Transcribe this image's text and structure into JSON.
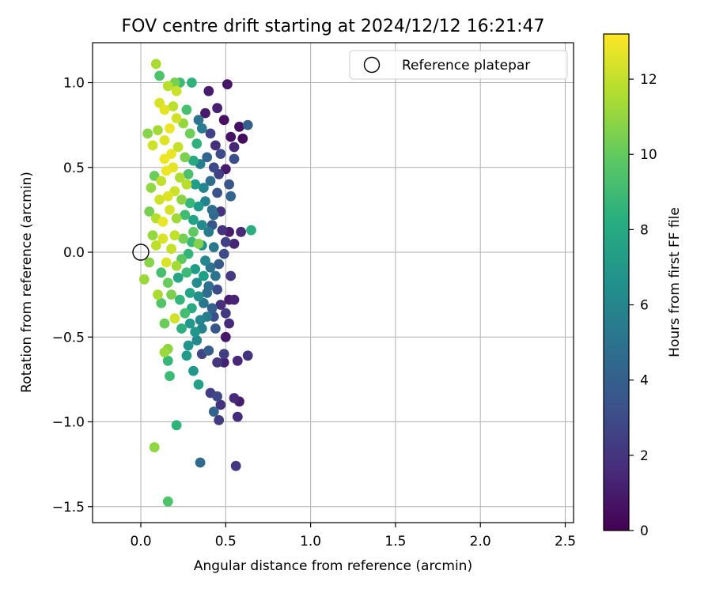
{
  "chart_data": {
    "type": "scatter",
    "title": "FOV centre drift starting at 2024/12/12 16:21:47",
    "xlabel": "Angular distance from reference (arcmin)",
    "ylabel": "Rotation from reference (arcmin)",
    "xlim": [
      -0.28,
      2.55
    ],
    "ylim": [
      -1.6,
      1.25
    ],
    "xticks": [
      0.0,
      0.5,
      1.0,
      1.5,
      2.0,
      2.5
    ],
    "xtick_labels": [
      "0.0",
      "0.5",
      "1.0",
      "1.5",
      "2.0",
      "2.5"
    ],
    "yticks": [
      -1.5,
      -1.0,
      -0.5,
      0.0,
      0.5,
      1.0
    ],
    "ytick_labels": [
      "−1.5",
      "−1.0",
      "−0.5",
      "0.0",
      "0.5",
      "1.0"
    ],
    "grid": true,
    "legend": {
      "position": "top-right",
      "entries": [
        "Reference platepar"
      ]
    },
    "reference_point": {
      "x": 0.0,
      "y": 0.0
    },
    "colorbar": {
      "label": "Hours from first FF file",
      "range": [
        0,
        13.2
      ],
      "ticks": [
        0,
        2,
        4,
        6,
        8,
        10,
        12
      ],
      "tick_labels": [
        "0",
        "2",
        "4",
        "6",
        "8",
        "10",
        "12"
      ],
      "colormap": "viridis"
    },
    "points": [
      {
        "x": 0.09,
        "y": 1.11,
        "h": 11.5
      },
      {
        "x": 0.11,
        "y": 1.04,
        "h": 9.5
      },
      {
        "x": 0.16,
        "y": 0.98,
        "h": 11.8
      },
      {
        "x": 0.2,
        "y": 1.0,
        "h": 10.5
      },
      {
        "x": 0.23,
        "y": 1.0,
        "h": 9.0
      },
      {
        "x": 0.3,
        "y": 1.0,
        "h": 8.5
      },
      {
        "x": 0.21,
        "y": 0.95,
        "h": 12.2
      },
      {
        "x": 0.4,
        "y": 0.95,
        "h": 1.0
      },
      {
        "x": 0.45,
        "y": 0.85,
        "h": 1.2
      },
      {
        "x": 0.51,
        "y": 0.99,
        "h": 0.8
      },
      {
        "x": 0.49,
        "y": 0.78,
        "h": 0.6
      },
      {
        "x": 0.58,
        "y": 0.74,
        "h": 0.5
      },
      {
        "x": 0.63,
        "y": 0.75,
        "h": 4.0
      },
      {
        "x": 0.53,
        "y": 0.68,
        "h": 0.7
      },
      {
        "x": 0.6,
        "y": 0.67,
        "h": 0.4
      },
      {
        "x": 0.55,
        "y": 0.62,
        "h": 1.5
      },
      {
        "x": 0.55,
        "y": 0.55,
        "h": 3.2
      },
      {
        "x": 0.5,
        "y": 0.49,
        "h": 0.9
      },
      {
        "x": 0.52,
        "y": 0.4,
        "h": 3.5
      },
      {
        "x": 0.53,
        "y": 0.33,
        "h": 4.2
      },
      {
        "x": 0.42,
        "y": 0.25,
        "h": 4.8
      },
      {
        "x": 0.47,
        "y": 0.24,
        "h": 2.0
      },
      {
        "x": 0.52,
        "y": 0.12,
        "h": 1.0
      },
      {
        "x": 0.59,
        "y": 0.12,
        "h": 1.5
      },
      {
        "x": 0.65,
        "y": 0.13,
        "h": 8.2
      },
      {
        "x": 0.5,
        "y": 0.06,
        "h": 2.5
      },
      {
        "x": 0.55,
        "y": 0.05,
        "h": 1.4
      },
      {
        "x": 0.49,
        "y": -0.01,
        "h": 3.0
      },
      {
        "x": 0.53,
        "y": -0.14,
        "h": 2.2
      },
      {
        "x": 0.52,
        "y": -0.28,
        "h": 1.0
      },
      {
        "x": 0.55,
        "y": -0.28,
        "h": 1.3
      },
      {
        "x": 0.47,
        "y": -0.31,
        "h": 1.8
      },
      {
        "x": 0.5,
        "y": -0.36,
        "h": 2.2
      },
      {
        "x": 0.52,
        "y": -0.42,
        "h": 1.6
      },
      {
        "x": 0.5,
        "y": -0.5,
        "h": 0.9
      },
      {
        "x": 0.44,
        "y": -0.45,
        "h": 3.5
      },
      {
        "x": 0.49,
        "y": -0.6,
        "h": 2.4
      },
      {
        "x": 0.45,
        "y": -0.65,
        "h": 2.1
      },
      {
        "x": 0.49,
        "y": -0.65,
        "h": 1.2
      },
      {
        "x": 0.57,
        "y": -0.64,
        "h": 1.5
      },
      {
        "x": 0.63,
        "y": -0.61,
        "h": 2.0
      },
      {
        "x": 0.41,
        "y": -0.83,
        "h": 2.4
      },
      {
        "x": 0.45,
        "y": -0.85,
        "h": 2.8
      },
      {
        "x": 0.47,
        "y": -0.9,
        "h": 1.9
      },
      {
        "x": 0.55,
        "y": -0.86,
        "h": 1.6
      },
      {
        "x": 0.58,
        "y": -0.88,
        "h": 1.1
      },
      {
        "x": 0.43,
        "y": -0.94,
        "h": 4.2
      },
      {
        "x": 0.46,
        "y": -0.99,
        "h": 2.3
      },
      {
        "x": 0.57,
        "y": -0.97,
        "h": 1.7
      },
      {
        "x": 0.35,
        "y": -1.24,
        "h": 4.5
      },
      {
        "x": 0.56,
        "y": -1.26,
        "h": 2.2
      },
      {
        "x": 0.34,
        "y": -0.78,
        "h": 7.5
      },
      {
        "x": 0.31,
        "y": -0.7,
        "h": 7.0
      },
      {
        "x": 0.21,
        "y": -1.02,
        "h": 8.5
      },
      {
        "x": 0.08,
        "y": -1.15,
        "h": 11.0
      },
      {
        "x": 0.16,
        "y": -1.47,
        "h": 9.5
      },
      {
        "x": 0.17,
        "y": -0.73,
        "h": 9.0
      },
      {
        "x": 0.14,
        "y": -0.59,
        "h": 11.2
      },
      {
        "x": 0.16,
        "y": -0.57,
        "h": 10.9
      },
      {
        "x": 0.16,
        "y": -0.64,
        "h": 8.8
      },
      {
        "x": 0.27,
        "y": -0.61,
        "h": 7.2
      },
      {
        "x": 0.28,
        "y": -0.55,
        "h": 6.8
      },
      {
        "x": 0.33,
        "y": -0.52,
        "h": 6.2
      },
      {
        "x": 0.36,
        "y": -0.45,
        "h": 5.8
      },
      {
        "x": 0.2,
        "y": -0.39,
        "h": 12.3
      },
      {
        "x": 0.14,
        "y": -0.42,
        "h": 10.2
      },
      {
        "x": 0.26,
        "y": -0.36,
        "h": 9.2
      },
      {
        "x": 0.3,
        "y": -0.33,
        "h": 8.0
      },
      {
        "x": 0.12,
        "y": -0.3,
        "h": 9.6
      },
      {
        "x": 0.1,
        "y": -0.25,
        "h": 11.5
      },
      {
        "x": 0.02,
        "y": -0.16,
        "h": 11.2
      },
      {
        "x": 0.16,
        "y": -0.18,
        "h": 10.1
      },
      {
        "x": 0.22,
        "y": -0.15,
        "h": 7.8
      },
      {
        "x": 0.33,
        "y": -0.18,
        "h": 6.4
      },
      {
        "x": 0.4,
        "y": -0.2,
        "h": 4.8
      },
      {
        "x": 0.45,
        "y": -0.22,
        "h": 3.0
      },
      {
        "x": 0.37,
        "y": -0.3,
        "h": 5.2
      },
      {
        "x": 0.42,
        "y": -0.33,
        "h": 4.1
      },
      {
        "x": 0.05,
        "y": -0.06,
        "h": 10.8
      },
      {
        "x": 0.09,
        "y": 0.04,
        "h": 11.9
      },
      {
        "x": 0.13,
        "y": 0.08,
        "h": 12.5
      },
      {
        "x": 0.18,
        "y": 0.02,
        "h": 12.1
      },
      {
        "x": 0.24,
        "y": -0.04,
        "h": 9.8
      },
      {
        "x": 0.28,
        "y": -0.01,
        "h": 8.6
      },
      {
        "x": 0.34,
        "y": 0.05,
        "h": 10.7
      },
      {
        "x": 0.38,
        "y": -0.05,
        "h": 6.1
      },
      {
        "x": 0.43,
        "y": 0.03,
        "h": 5.3
      },
      {
        "x": 0.05,
        "y": 0.24,
        "h": 10.5
      },
      {
        "x": 0.09,
        "y": 0.2,
        "h": 11.7
      },
      {
        "x": 0.13,
        "y": 0.18,
        "h": 12.8
      },
      {
        "x": 0.17,
        "y": 0.25,
        "h": 12.4
      },
      {
        "x": 0.21,
        "y": 0.2,
        "h": 11.3
      },
      {
        "x": 0.26,
        "y": 0.22,
        "h": 9.1
      },
      {
        "x": 0.31,
        "y": 0.19,
        "h": 7.6
      },
      {
        "x": 0.36,
        "y": 0.16,
        "h": 6.3
      },
      {
        "x": 0.4,
        "y": 0.12,
        "h": 5.4
      },
      {
        "x": 0.06,
        "y": 0.38,
        "h": 11.0
      },
      {
        "x": 0.08,
        "y": 0.45,
        "h": 10.2
      },
      {
        "x": 0.12,
        "y": 0.42,
        "h": 12.0
      },
      {
        "x": 0.15,
        "y": 0.48,
        "h": 12.9
      },
      {
        "x": 0.19,
        "y": 0.5,
        "h": 12.7
      },
      {
        "x": 0.23,
        "y": 0.44,
        "h": 11.6
      },
      {
        "x": 0.28,
        "y": 0.46,
        "h": 9.4
      },
      {
        "x": 0.32,
        "y": 0.4,
        "h": 7.4
      },
      {
        "x": 0.37,
        "y": 0.38,
        "h": 6.0
      },
      {
        "x": 0.41,
        "y": 0.42,
        "h": 4.6
      },
      {
        "x": 0.45,
        "y": 0.35,
        "h": 3.4
      },
      {
        "x": 0.04,
        "y": 0.7,
        "h": 10.8
      },
      {
        "x": 0.07,
        "y": 0.63,
        "h": 12.2
      },
      {
        "x": 0.1,
        "y": 0.72,
        "h": 11.4
      },
      {
        "x": 0.14,
        "y": 0.66,
        "h": 12.6
      },
      {
        "x": 0.17,
        "y": 0.73,
        "h": 12.9
      },
      {
        "x": 0.21,
        "y": 0.79,
        "h": 12.3
      },
      {
        "x": 0.25,
        "y": 0.76,
        "h": 11.1
      },
      {
        "x": 0.29,
        "y": 0.7,
        "h": 10.3
      },
      {
        "x": 0.33,
        "y": 0.64,
        "h": 8.4
      },
      {
        "x": 0.36,
        "y": 0.73,
        "h": 5.6
      },
      {
        "x": 0.41,
        "y": 0.7,
        "h": 2.6
      },
      {
        "x": 0.44,
        "y": 0.63,
        "h": 1.8
      },
      {
        "x": 0.47,
        "y": 0.58,
        "h": 3.0
      },
      {
        "x": 0.11,
        "y": 0.88,
        "h": 12.4
      },
      {
        "x": 0.14,
        "y": 0.84,
        "h": 12.7
      },
      {
        "x": 0.19,
        "y": 0.86,
        "h": 11.9
      },
      {
        "x": 0.27,
        "y": 0.84,
        "h": 9.3
      },
      {
        "x": 0.34,
        "y": 0.78,
        "h": 5.1
      },
      {
        "x": 0.38,
        "y": 0.82,
        "h": 0.9
      },
      {
        "x": 0.18,
        "y": 0.58,
        "h": 12.8
      },
      {
        "x": 0.22,
        "y": 0.62,
        "h": 12.1
      },
      {
        "x": 0.26,
        "y": 0.56,
        "h": 10.6
      },
      {
        "x": 0.31,
        "y": 0.54,
        "h": 7.9
      },
      {
        "x": 0.35,
        "y": 0.52,
        "h": 5.7
      },
      {
        "x": 0.39,
        "y": 0.56,
        "h": 4.3
      },
      {
        "x": 0.43,
        "y": 0.5,
        "h": 2.9
      },
      {
        "x": 0.16,
        "y": 0.33,
        "h": 12.6
      },
      {
        "x": 0.2,
        "y": 0.36,
        "h": 12.2
      },
      {
        "x": 0.24,
        "y": 0.31,
        "h": 10.9
      },
      {
        "x": 0.29,
        "y": 0.29,
        "h": 8.8
      },
      {
        "x": 0.34,
        "y": 0.27,
        "h": 7.1
      },
      {
        "x": 0.38,
        "y": 0.3,
        "h": 5.9
      },
      {
        "x": 0.43,
        "y": 0.22,
        "h": 4.4
      },
      {
        "x": 0.2,
        "y": 0.1,
        "h": 12.0
      },
      {
        "x": 0.25,
        "y": 0.08,
        "h": 10.4
      },
      {
        "x": 0.3,
        "y": 0.06,
        "h": 8.9
      },
      {
        "x": 0.36,
        "y": 0.04,
        "h": 6.7
      },
      {
        "x": 0.41,
        "y": -0.09,
        "h": 5.0
      },
      {
        "x": 0.46,
        "y": -0.07,
        "h": 3.8
      },
      {
        "x": 0.15,
        "y": -0.06,
        "h": 12.5
      },
      {
        "x": 0.21,
        "y": -0.08,
        "h": 11.4
      },
      {
        "x": 0.27,
        "y": -0.12,
        "h": 9.0
      },
      {
        "x": 0.32,
        "y": -0.1,
        "h": 7.3
      },
      {
        "x": 0.18,
        "y": -0.25,
        "h": 10.6
      },
      {
        "x": 0.23,
        "y": -0.28,
        "h": 8.7
      },
      {
        "x": 0.29,
        "y": -0.24,
        "h": 7.7
      },
      {
        "x": 0.34,
        "y": -0.26,
        "h": 6.5
      },
      {
        "x": 0.39,
        "y": -0.38,
        "h": 5.5
      },
      {
        "x": 0.24,
        "y": -0.45,
        "h": 8.3
      },
      {
        "x": 0.29,
        "y": -0.42,
        "h": 7.0
      },
      {
        "x": 0.35,
        "y": -0.4,
        "h": 6.1
      },
      {
        "x": 0.4,
        "y": -0.58,
        "h": 3.9
      },
      {
        "x": 0.36,
        "y": -0.6,
        "h": 2.7
      },
      {
        "x": 0.32,
        "y": -0.47,
        "h": 6.9
      },
      {
        "x": 0.12,
        "y": -0.12,
        "h": 9.3
      },
      {
        "x": 0.07,
        "y": 0.1,
        "h": 11.1
      },
      {
        "x": 0.11,
        "y": 0.31,
        "h": 12.3
      },
      {
        "x": 0.14,
        "y": 0.55,
        "h": 12.9
      },
      {
        "x": 0.27,
        "y": 0.4,
        "h": 11.8
      },
      {
        "x": 0.31,
        "y": 0.12,
        "h": 9.9
      },
      {
        "x": 0.37,
        "y": -0.14,
        "h": 7.4
      },
      {
        "x": 0.43,
        "y": -0.38,
        "h": 3.2
      },
      {
        "x": 0.48,
        "y": 0.13,
        "h": 1.9
      },
      {
        "x": 0.46,
        "y": 0.46,
        "h": 2.5
      },
      {
        "x": 0.42,
        "y": 0.16,
        "h": 3.6
      },
      {
        "x": 0.39,
        "y": -0.24,
        "h": 4.7
      },
      {
        "x": 0.44,
        "y": -0.14,
        "h": 5.1
      }
    ]
  }
}
